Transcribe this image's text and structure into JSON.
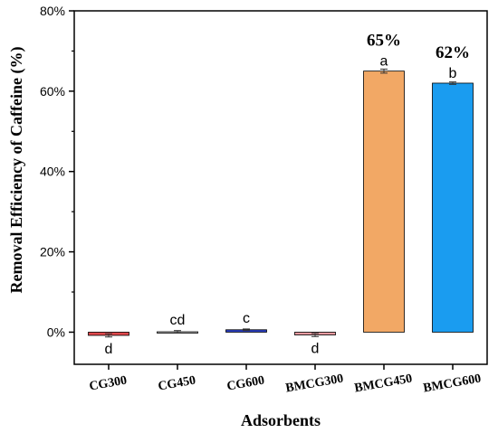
{
  "chart_data": {
    "type": "bar",
    "xlabel": "Adsorbents",
    "ylabel": "Removal Efficiency of Caffeine (%)",
    "ylim": [
      -8,
      80
    ],
    "yticks": [
      0,
      20,
      40,
      60,
      80
    ],
    "ytick_labels": [
      "0%",
      "20%",
      "40%",
      "60%",
      "80%"
    ],
    "categories": [
      "CG300",
      "CG450",
      "CG600",
      "BMCG300",
      "BMCG450",
      "BMCG600"
    ],
    "values": [
      -0.8,
      0.1,
      0.6,
      -0.7,
      65,
      62
    ],
    "errors": [
      0.4,
      0.3,
      0.2,
      0.4,
      0.5,
      0.3
    ],
    "group_letters": [
      "d",
      "cd",
      "c",
      "d",
      "a",
      "b"
    ],
    "value_labels": [
      "",
      "",
      "",
      "",
      "65%",
      "62%"
    ],
    "colors": [
      "#e0484c",
      "#c8c8c8",
      "#2a3fc4",
      "#e89aa0",
      "#f2a865",
      "#1a9cf0"
    ],
    "grid": false,
    "legend": "none"
  }
}
